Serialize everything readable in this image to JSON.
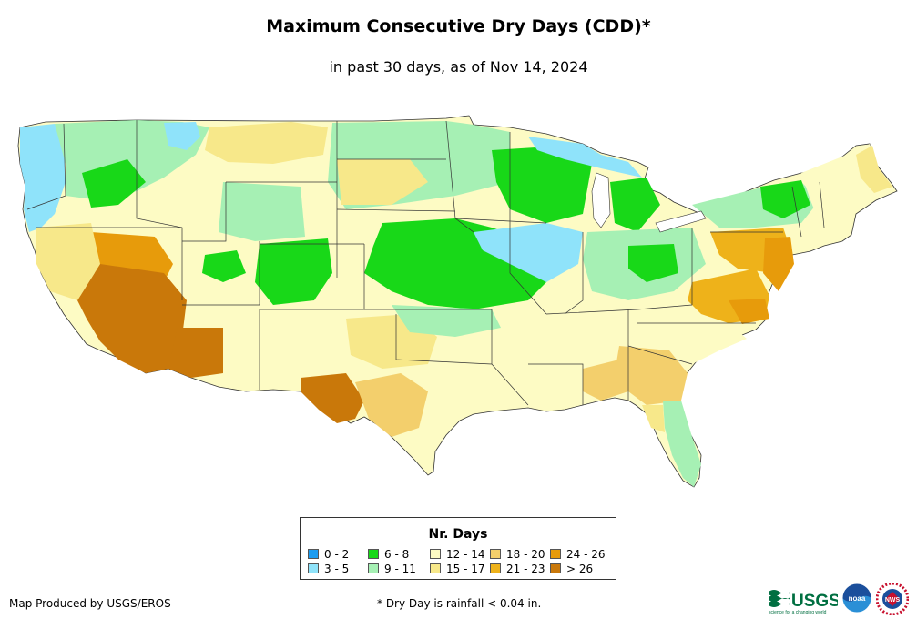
{
  "title": "Maximum Consecutive Dry Days (CDD)*",
  "subtitle": "in past 30 days, as of Nov 14, 2024",
  "legend": {
    "title": "Nr. Days",
    "items": [
      {
        "label": "0 - 2",
        "color": "#1c9cf0"
      },
      {
        "label": "3 - 5",
        "color": "#8fe3fa"
      },
      {
        "label": "6 - 8",
        "color": "#18d818"
      },
      {
        "label": "9 - 11",
        "color": "#a6f0b4"
      },
      {
        "label": "12 - 14",
        "color": "#fdfbc4"
      },
      {
        "label": "15 - 17",
        "color": "#f7e88a"
      },
      {
        "label": "18 - 20",
        "color": "#f3cf6c"
      },
      {
        "label": "21 - 23",
        "color": "#eeb21a"
      },
      {
        "label": "24 - 26",
        "color": "#e79b0b"
      },
      {
        "label": "> 26",
        "color": "#c9780a"
      }
    ]
  },
  "credit": "Map Produced by USGS/EROS",
  "footnote": "* Dry Day is rainfall < 0.04 in.",
  "logos": {
    "usgs_text": "USGS",
    "usgs_tagline": "science for a changing world",
    "noaa_text": "noaa",
    "nws_text": "NWS"
  }
}
